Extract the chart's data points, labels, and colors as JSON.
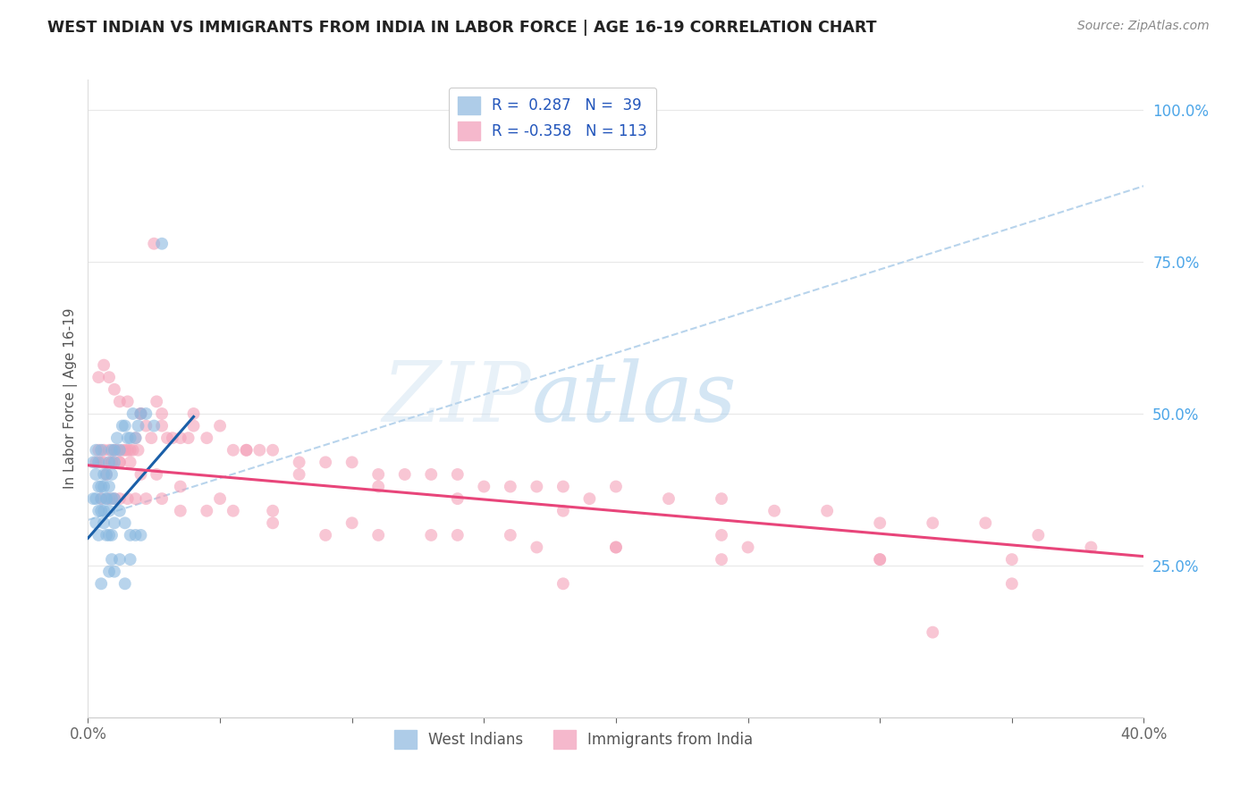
{
  "title": "WEST INDIAN VS IMMIGRANTS FROM INDIA IN LABOR FORCE | AGE 16-19 CORRELATION CHART",
  "source": "Source: ZipAtlas.com",
  "ylabel": "In Labor Force | Age 16-19",
  "xlim": [
    0.0,
    0.4
  ],
  "ylim": [
    0.0,
    1.05
  ],
  "blue_color": "#89b8e0",
  "pink_color": "#f4a0b8",
  "blue_line_color": "#1a5fa8",
  "pink_line_color": "#e8457a",
  "dashed_line_color": "#b8d4ec",
  "background_color": "#ffffff",
  "grid_color": "#e8e8e8",
  "blue_line": {
    "x0": 0.0,
    "y0": 0.295,
    "x1": 0.04,
    "y1": 0.495
  },
  "pink_line": {
    "x0": 0.0,
    "y0": 0.415,
    "x1": 0.4,
    "y1": 0.265
  },
  "dashed_line": {
    "x0": 0.0,
    "y0": 0.325,
    "x1": 0.4,
    "y1": 0.875
  },
  "west_indians": {
    "x": [
      0.002,
      0.003,
      0.003,
      0.004,
      0.004,
      0.005,
      0.005,
      0.006,
      0.006,
      0.007,
      0.007,
      0.008,
      0.008,
      0.009,
      0.009,
      0.01,
      0.01,
      0.011,
      0.012,
      0.013,
      0.014,
      0.015,
      0.016,
      0.017,
      0.018,
      0.019,
      0.02,
      0.022,
      0.025,
      0.028,
      0.003,
      0.004,
      0.005,
      0.006,
      0.007,
      0.008,
      0.009,
      0.01,
      0.002,
      0.003,
      0.004,
      0.005,
      0.006,
      0.007,
      0.008,
      0.009,
      0.01,
      0.012,
      0.014,
      0.016,
      0.018,
      0.02,
      0.009,
      0.012,
      0.016,
      0.008,
      0.01,
      0.005,
      0.014
    ],
    "y": [
      0.42,
      0.4,
      0.44,
      0.42,
      0.38,
      0.44,
      0.38,
      0.4,
      0.38,
      0.4,
      0.36,
      0.38,
      0.42,
      0.4,
      0.44,
      0.42,
      0.44,
      0.46,
      0.44,
      0.48,
      0.48,
      0.46,
      0.46,
      0.5,
      0.46,
      0.48,
      0.5,
      0.5,
      0.48,
      0.78,
      0.32,
      0.3,
      0.34,
      0.32,
      0.3,
      0.3,
      0.3,
      0.32,
      0.36,
      0.36,
      0.34,
      0.36,
      0.34,
      0.36,
      0.34,
      0.36,
      0.36,
      0.34,
      0.32,
      0.3,
      0.3,
      0.3,
      0.26,
      0.26,
      0.26,
      0.24,
      0.24,
      0.22,
      0.22
    ]
  },
  "india": {
    "x": [
      0.003,
      0.004,
      0.005,
      0.006,
      0.007,
      0.008,
      0.009,
      0.01,
      0.011,
      0.012,
      0.013,
      0.014,
      0.015,
      0.016,
      0.017,
      0.018,
      0.019,
      0.02,
      0.022,
      0.024,
      0.026,
      0.028,
      0.03,
      0.032,
      0.035,
      0.038,
      0.04,
      0.045,
      0.05,
      0.055,
      0.06,
      0.065,
      0.07,
      0.08,
      0.09,
      0.1,
      0.11,
      0.12,
      0.13,
      0.14,
      0.15,
      0.16,
      0.17,
      0.18,
      0.19,
      0.2,
      0.22,
      0.24,
      0.26,
      0.28,
      0.3,
      0.32,
      0.34,
      0.36,
      0.38,
      0.005,
      0.008,
      0.01,
      0.012,
      0.015,
      0.018,
      0.022,
      0.028,
      0.035,
      0.045,
      0.055,
      0.07,
      0.09,
      0.11,
      0.14,
      0.17,
      0.2,
      0.24,
      0.006,
      0.009,
      0.012,
      0.016,
      0.02,
      0.026,
      0.035,
      0.05,
      0.07,
      0.1,
      0.13,
      0.16,
      0.2,
      0.25,
      0.3,
      0.35,
      0.004,
      0.006,
      0.008,
      0.01,
      0.012,
      0.015,
      0.02,
      0.028,
      0.04,
      0.06,
      0.08,
      0.11,
      0.14,
      0.18,
      0.24,
      0.3,
      0.35,
      0.025,
      0.18,
      0.32
    ],
    "y": [
      0.42,
      0.44,
      0.42,
      0.44,
      0.4,
      0.44,
      0.42,
      0.44,
      0.44,
      0.42,
      0.44,
      0.44,
      0.44,
      0.44,
      0.44,
      0.46,
      0.44,
      0.5,
      0.48,
      0.46,
      0.52,
      0.48,
      0.46,
      0.46,
      0.46,
      0.46,
      0.5,
      0.46,
      0.48,
      0.44,
      0.44,
      0.44,
      0.44,
      0.42,
      0.42,
      0.42,
      0.4,
      0.4,
      0.4,
      0.4,
      0.38,
      0.38,
      0.38,
      0.38,
      0.36,
      0.38,
      0.36,
      0.36,
      0.34,
      0.34,
      0.32,
      0.32,
      0.32,
      0.3,
      0.28,
      0.36,
      0.36,
      0.36,
      0.36,
      0.36,
      0.36,
      0.36,
      0.36,
      0.34,
      0.34,
      0.34,
      0.32,
      0.3,
      0.3,
      0.3,
      0.28,
      0.28,
      0.26,
      0.42,
      0.42,
      0.42,
      0.42,
      0.4,
      0.4,
      0.38,
      0.36,
      0.34,
      0.32,
      0.3,
      0.3,
      0.28,
      0.28,
      0.26,
      0.26,
      0.56,
      0.58,
      0.56,
      0.54,
      0.52,
      0.52,
      0.5,
      0.5,
      0.48,
      0.44,
      0.4,
      0.38,
      0.36,
      0.34,
      0.3,
      0.26,
      0.22,
      0.78,
      0.22,
      0.14
    ]
  }
}
